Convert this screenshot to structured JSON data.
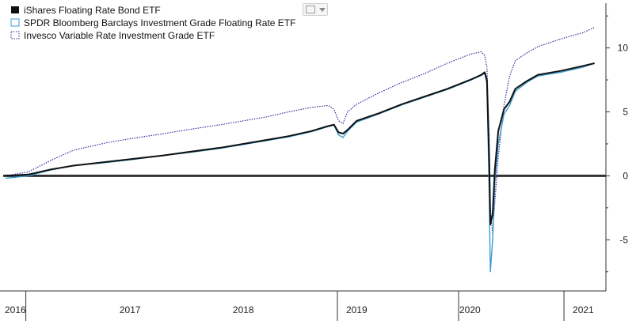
{
  "toolbar": {
    "chart_type_icon": "line-chart-icon",
    "menu_icon": "chevron-down-icon"
  },
  "chart_data": {
    "type": "line",
    "title": "",
    "xlabel": "",
    "ylabel": "",
    "ylim": [
      -9,
      13.5
    ],
    "xlim": [
      2015.88,
      2021.2
    ],
    "yticks": [
      -5,
      0,
      5,
      10
    ],
    "ytick_labels": [
      "-5",
      "0",
      "5",
      "10"
    ],
    "zero_line": true,
    "grid": false,
    "legend_position": "top-left",
    "x_year_labels": [
      "2016",
      "2017",
      "2018",
      "2019",
      "2020",
      "2021"
    ],
    "x_year_label_at": [
      2016.0,
      2017.0,
      2018.0,
      2019.0,
      2020.0,
      2021.0
    ],
    "x_year_dividers": [
      2016.08,
      2018.83,
      2019.9,
      2020.83
    ],
    "series": [
      {
        "name": "iShares Floating Rate Bond ETF",
        "color": "#111111",
        "style": "solid",
        "x": [
          2015.9,
          2016.1,
          2016.3,
          2016.5,
          2016.8,
          2017.0,
          2017.3,
          2017.5,
          2017.8,
          2018.0,
          2018.2,
          2018.4,
          2018.6,
          2018.75,
          2018.8,
          2018.84,
          2018.88,
          2018.92,
          2019.0,
          2019.2,
          2019.4,
          2019.6,
          2019.8,
          2020.0,
          2020.1,
          2020.13,
          2020.15,
          2020.17,
          2020.18,
          2020.2,
          2020.22,
          2020.25,
          2020.3,
          2020.35,
          2020.4,
          2020.5,
          2020.6,
          2020.8,
          2021.0,
          2021.1
        ],
        "values": [
          0.0,
          0.1,
          0.5,
          0.8,
          1.1,
          1.3,
          1.6,
          1.85,
          2.2,
          2.5,
          2.8,
          3.1,
          3.5,
          3.9,
          4.0,
          3.4,
          3.3,
          3.6,
          4.3,
          4.9,
          5.6,
          6.2,
          6.8,
          7.5,
          7.9,
          8.1,
          7.5,
          1.0,
          -3.8,
          -3.0,
          0.5,
          3.5,
          5.2,
          5.8,
          6.8,
          7.4,
          7.9,
          8.2,
          8.6,
          8.8
        ]
      },
      {
        "name": "SPDR Bloomberg Barclays Investment Grade Floating Rate ETF",
        "color": "#3a9ed1",
        "style": "solid",
        "x": [
          2015.9,
          2016.1,
          2016.3,
          2016.5,
          2016.8,
          2017.0,
          2017.3,
          2017.5,
          2017.8,
          2018.0,
          2018.2,
          2018.4,
          2018.6,
          2018.75,
          2018.8,
          2018.84,
          2018.88,
          2018.92,
          2019.0,
          2019.2,
          2019.4,
          2019.6,
          2019.8,
          2020.0,
          2020.1,
          2020.13,
          2020.15,
          2020.17,
          2020.18,
          2020.2,
          2020.22,
          2020.25,
          2020.3,
          2020.35,
          2020.4,
          2020.5,
          2020.6,
          2020.8,
          2021.0,
          2021.1
        ],
        "values": [
          -0.2,
          0.0,
          0.45,
          0.8,
          1.05,
          1.25,
          1.6,
          1.8,
          2.15,
          2.45,
          2.75,
          3.05,
          3.45,
          3.85,
          3.95,
          3.2,
          3.0,
          3.5,
          4.2,
          4.85,
          5.55,
          6.15,
          6.75,
          7.45,
          7.85,
          8.0,
          7.2,
          -1.5,
          -7.5,
          -5.0,
          -0.5,
          2.5,
          4.8,
          5.5,
          6.6,
          7.3,
          7.8,
          8.1,
          8.5,
          8.8
        ]
      },
      {
        "name": "Invesco Variable Rate Investment Grade ETF",
        "color": "#2e2e9e",
        "style": "dotted",
        "x": [
          2015.9,
          2016.1,
          2016.3,
          2016.5,
          2016.8,
          2017.0,
          2017.3,
          2017.5,
          2017.8,
          2018.0,
          2018.2,
          2018.4,
          2018.6,
          2018.75,
          2018.8,
          2018.84,
          2018.88,
          2018.92,
          2019.0,
          2019.2,
          2019.4,
          2019.6,
          2019.8,
          2020.0,
          2020.1,
          2020.13,
          2020.15,
          2020.17,
          2020.18,
          2020.2,
          2020.22,
          2020.25,
          2020.3,
          2020.35,
          2020.4,
          2020.5,
          2020.6,
          2020.8,
          2021.0,
          2021.1
        ],
        "values": [
          0.0,
          0.3,
          1.2,
          2.0,
          2.6,
          2.9,
          3.3,
          3.6,
          4.0,
          4.3,
          4.6,
          5.0,
          5.35,
          5.5,
          5.2,
          4.3,
          4.1,
          5.0,
          5.6,
          6.5,
          7.3,
          8.0,
          8.8,
          9.5,
          9.7,
          9.4,
          8.5,
          3.0,
          -2.5,
          -4.5,
          -2.0,
          1.5,
          5.5,
          7.8,
          9.0,
          9.6,
          10.1,
          10.7,
          11.2,
          11.6
        ]
      }
    ]
  }
}
